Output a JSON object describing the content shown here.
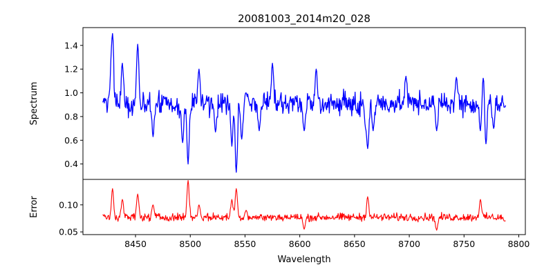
{
  "chart_data": {
    "type": "line",
    "title": "20081003_2014m20_028",
    "xlabel": "Wavelength",
    "xlim": [
      8402,
      8806
    ],
    "xticks": [
      8450,
      8500,
      8550,
      8600,
      8650,
      8700,
      8750,
      8800
    ],
    "x_start": 8420,
    "x_end": 8788,
    "panels": [
      {
        "name": "spectrum",
        "ylabel": "Spectrum",
        "ylim": [
          0.27,
          1.55
        ],
        "yticks": [
          0.4,
          0.6,
          0.8,
          1.0,
          1.2,
          1.4
        ],
        "ytick_labels": [
          "0.4",
          "0.6",
          "0.8",
          "1.0",
          "1.2",
          "1.4"
        ],
        "color": "#0000ff",
        "baseline": 0.91,
        "noise": 0.1,
        "features": [
          {
            "x": 8420,
            "y": 0.92
          },
          {
            "x": 8428,
            "y": 1.2
          },
          {
            "x": 8429,
            "y": 1.5
          },
          {
            "x": 8438,
            "y": 1.25
          },
          {
            "x": 8452,
            "y": 1.41
          },
          {
            "x": 8466,
            "y": 0.63
          },
          {
            "x": 8485,
            "y": 0.87
          },
          {
            "x": 8493,
            "y": 0.58
          },
          {
            "x": 8498,
            "y": 0.4
          },
          {
            "x": 8508,
            "y": 1.2
          },
          {
            "x": 8523,
            "y": 0.67
          },
          {
            "x": 8538,
            "y": 0.55
          },
          {
            "x": 8542,
            "y": 0.33
          },
          {
            "x": 8547,
            "y": 0.61
          },
          {
            "x": 8551,
            "y": 1.0
          },
          {
            "x": 8563,
            "y": 0.68
          },
          {
            "x": 8575,
            "y": 1.25
          },
          {
            "x": 8604,
            "y": 0.68
          },
          {
            "x": 8615,
            "y": 1.2
          },
          {
            "x": 8660,
            "y": 0.73
          },
          {
            "x": 8662,
            "y": 0.53
          },
          {
            "x": 8667,
            "y": 0.68
          },
          {
            "x": 8697,
            "y": 1.14
          },
          {
            "x": 8725,
            "y": 0.68
          },
          {
            "x": 8743,
            "y": 1.13
          },
          {
            "x": 8765,
            "y": 0.68
          },
          {
            "x": 8768,
            "y": 1.18
          },
          {
            "x": 8770,
            "y": 0.57
          },
          {
            "x": 8777,
            "y": 0.7
          },
          {
            "x": 8787,
            "y": 0.88
          }
        ]
      },
      {
        "name": "error",
        "ylabel": "Error",
        "ylim": [
          0.045,
          0.147
        ],
        "yticks": [
          0.05,
          0.1
        ],
        "ytick_labels": [
          "0.05",
          "0.10"
        ],
        "color": "#ff0000",
        "baseline": 0.077,
        "noise": 0.008,
        "features": [
          {
            "x": 8420,
            "y": 0.082
          },
          {
            "x": 8429,
            "y": 0.13
          },
          {
            "x": 8438,
            "y": 0.11
          },
          {
            "x": 8452,
            "y": 0.12
          },
          {
            "x": 8466,
            "y": 0.1
          },
          {
            "x": 8498,
            "y": 0.145
          },
          {
            "x": 8508,
            "y": 0.1
          },
          {
            "x": 8538,
            "y": 0.11
          },
          {
            "x": 8542,
            "y": 0.13
          },
          {
            "x": 8551,
            "y": 0.09
          },
          {
            "x": 8604,
            "y": 0.055
          },
          {
            "x": 8662,
            "y": 0.115
          },
          {
            "x": 8725,
            "y": 0.053
          },
          {
            "x": 8765,
            "y": 0.11
          },
          {
            "x": 8787,
            "y": 0.07
          }
        ]
      }
    ]
  }
}
